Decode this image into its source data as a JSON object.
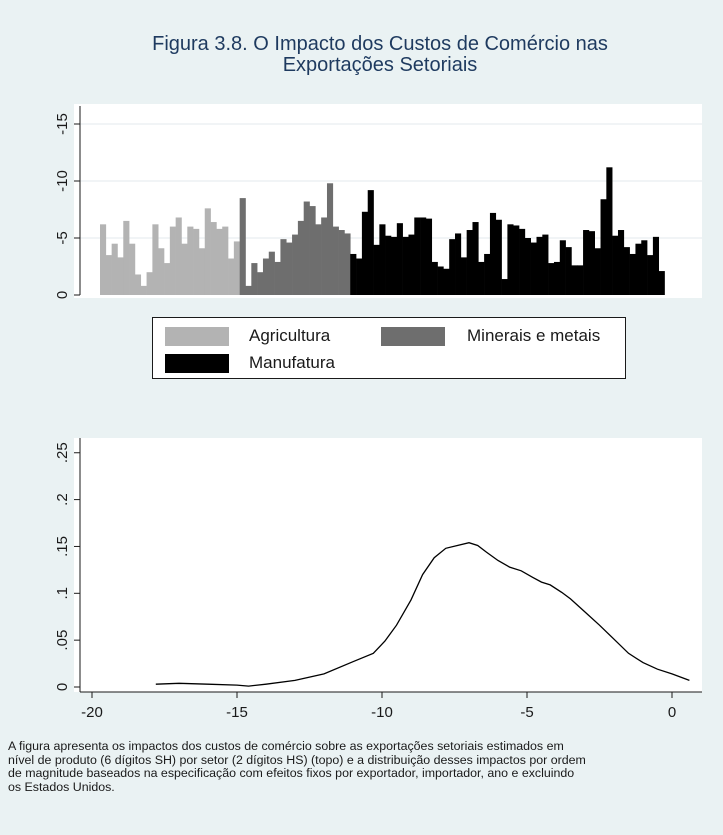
{
  "title_lines": [
    "Figura 3.8. O Impacto dos Custos de Comércio nas",
    "Exportações Setoriais"
  ],
  "legend": {
    "items": [
      {
        "label": "Agricultura",
        "color": "#b3b3b3"
      },
      {
        "label": "Minerais e metais",
        "color": "#6e6e6e"
      },
      {
        "label": "Manufatura",
        "color": "#000000"
      }
    ]
  },
  "caption_lines": [
    "A figura apresenta os impactos dos custos de comércio sobre as exportações setoriais estimados em",
    "nível de produto (6 dígitos SH)  por setor (2 dígitos HS) (topo) e a distribuição desses impactos por ordem",
    "de magnitude baseados na especificação com efeitos fixos por exportador, importador, ano e excluindo",
    " os Estados Unidos."
  ],
  "chart_data": [
    {
      "type": "bar",
      "ylim": [
        0,
        -16
      ],
      "y_ticks": [
        0,
        -5,
        -10,
        -15
      ],
      "y_tick_labels": [
        "0",
        "-5",
        "-10",
        "-15"
      ],
      "grid": true,
      "legend_position": "bottom",
      "series": [
        {
          "name": "Agricultura",
          "color": "#b3b3b3",
          "values": [
            -6.2,
            -3.5,
            -4.5,
            -3.3,
            -6.5,
            -4.5,
            -1.8,
            -0.8,
            -2.0,
            -6.2,
            -4.1,
            -2.8,
            -6.0,
            -6.8,
            -4.5,
            -6.0,
            -5.8,
            -4.1,
            -7.6,
            -6.4,
            -5.8,
            -6.0,
            -3.2,
            -4.7
          ]
        },
        {
          "name": "Minerais e metais",
          "color": "#6e6e6e",
          "values": [
            -8.5,
            -0.8,
            -2.8,
            -2.0,
            -3.2,
            -3.8,
            -2.9,
            -4.9,
            -4.6,
            -5.3,
            -6.5,
            -8.2,
            -7.8,
            -6.2,
            -6.8,
            -9.8,
            -6.0,
            -5.7,
            -5.4
          ]
        },
        {
          "name": "Manufatura",
          "color": "#000000",
          "values": [
            -3.6,
            -3.2,
            -7.3,
            -9.2,
            -4.4,
            -6.2,
            -5.2,
            -5.1,
            -6.3,
            -5.1,
            -5.3,
            -6.8,
            -6.8,
            -6.7,
            -2.9,
            -2.5,
            -2.3,
            -4.9,
            -5.4,
            -3.3,
            -5.7,
            -6.4,
            -2.9,
            -3.6,
            -7.2,
            -6.6,
            -1.4,
            -6.2,
            -6.1,
            -5.8,
            -5.0,
            -4.6,
            -5.1,
            -5.3,
            -2.8,
            -2.9,
            -4.8,
            -4.2,
            -2.6,
            -2.6,
            -5.7,
            -5.6,
            -4.1,
            -8.4,
            -11.2,
            -5.2,
            -5.7,
            -4.2,
            -3.6,
            -4.5,
            -4.8,
            -3.5,
            -5.1,
            -2.1
          ]
        }
      ]
    },
    {
      "type": "line",
      "xlim": [
        -20.6,
        1.0
      ],
      "ylim": [
        0,
        0.26
      ],
      "x_ticks": [
        -20,
        -15,
        -10,
        -5,
        0
      ],
      "x_tick_labels": [
        "-20",
        "-15",
        "-10",
        "-5",
        "0"
      ],
      "y_ticks": [
        0,
        0.05,
        0.1,
        0.15,
        0.2,
        0.25
      ],
      "y_tick_labels": [
        "0",
        ".05",
        ".1",
        ".15",
        ".2",
        ".25"
      ],
      "grid": false,
      "series": [
        {
          "color": "#000000",
          "x": [
            -17.8,
            -17.0,
            -16.0,
            -15.0,
            -14.6,
            -14.0,
            -13.0,
            -12.0,
            -11.0,
            -10.3,
            -9.9,
            -9.5,
            -9.0,
            -8.6,
            -8.2,
            -7.8,
            -7.4,
            -7.0,
            -6.7,
            -6.4,
            -6.0,
            -5.6,
            -5.2,
            -4.8,
            -4.5,
            -4.2,
            -3.8,
            -3.5,
            -3.0,
            -2.5,
            -2.0,
            -1.5,
            -1.0,
            -0.5,
            0.0,
            0.6
          ],
          "y": [
            0.003,
            0.004,
            0.003,
            0.002,
            0.001,
            0.003,
            0.007,
            0.014,
            0.027,
            0.036,
            0.049,
            0.066,
            0.093,
            0.12,
            0.138,
            0.148,
            0.151,
            0.154,
            0.151,
            0.144,
            0.135,
            0.128,
            0.124,
            0.117,
            0.112,
            0.109,
            0.101,
            0.094,
            0.08,
            0.066,
            0.051,
            0.036,
            0.026,
            0.019,
            0.014,
            0.007
          ]
        }
      ]
    }
  ]
}
